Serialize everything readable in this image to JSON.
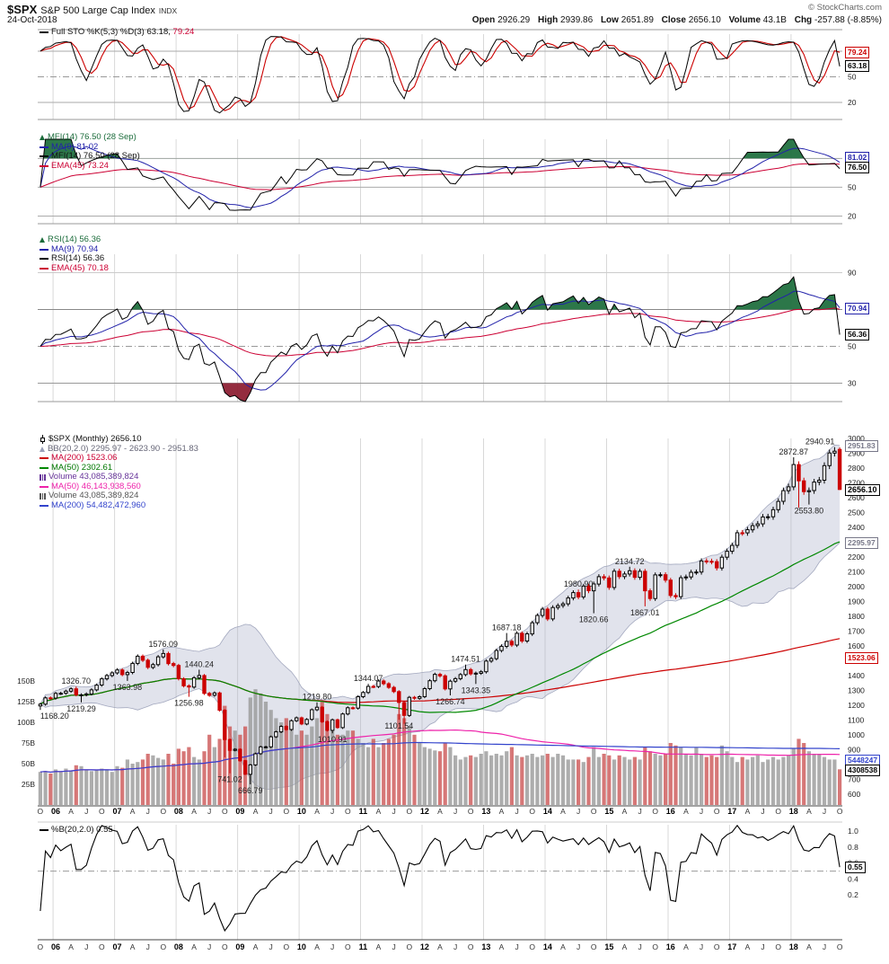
{
  "header": {
    "symbol": "$SPX",
    "name": "S&P 500 Large Cap Index",
    "exchange": "INDX",
    "date": "24-Oct-2018",
    "copyright": "© StockCharts.com",
    "quote": {
      "open_label": "Open",
      "open": "2926.29",
      "high_label": "High",
      "high": "2939.86",
      "low_label": "Low",
      "low": "2651.89",
      "close_label": "Close",
      "close": "2656.10",
      "volume_label": "Volume",
      "volume": "43.1B",
      "chg_label": "Chg",
      "chg": "-257.88 (-8.85%)"
    }
  },
  "legends": {
    "sto": {
      "title": "Full STO %K(5,3) %D(3)",
      "k_value": "63.18,",
      "d_value": "79.24"
    },
    "mfi": {
      "title": "MFI(14) 76.50 (28 Sep)",
      "ma9": "MA(9) 81.02",
      "mfi": "MFI(14) 76.50 (28 Sep)",
      "ema45": "EMA(45) 73.24"
    },
    "rsi": {
      "title": "RSI(14) 56.36",
      "ma9": "MA(9) 70.94",
      "rsi": "RSI(14) 56.36",
      "ema45": "EMA(45) 70.18"
    },
    "price": {
      "title": "$SPX (Monthly) 2656.10",
      "bb": "BB(20,2.0) 2295.97 - 2623.90 - 2951.83",
      "ma200": "MA(200) 1523.06",
      "ma50": "MA(50) 2302.61",
      "volume1": "Volume 43,085,389,824",
      "volma50": "MA(50) 46,143,938,560",
      "volume2": "Volume 43,085,389,824",
      "volma200": "MA(200) 54,482,472,960"
    },
    "pctb": {
      "title": "%B(20,2.0) 0.55"
    }
  },
  "colors": {
    "k_line": "#000000",
    "d_line": "#cc0000",
    "ma9": "#2222aa",
    "ema45": "#cc0033",
    "overbought_fill": "#1a6b3a",
    "oversold_fill": "#8b1a2f",
    "price_ma200": "#cc0000",
    "price_ma50": "#008800",
    "vol_ma50": "#ee22aa",
    "vol_ma200": "#3344cc",
    "bb_fill": "#aab0c8",
    "bb_edge": "#9aa0b8",
    "candle_up": "#000000",
    "candle_down": "#cc0000",
    "vol_up": "#999999",
    "vol_down": "#cc5555",
    "grid": "#d8d8d8"
  },
  "chart_data": {
    "type": "candlestick",
    "symbol": "$SPX",
    "timeframe": "Monthly",
    "start": "2005-10",
    "close": [
      1207.01,
      1249.48,
      1248.29,
      1280.08,
      1280.66,
      1294.87,
      1310.61,
      1270.09,
      1270.2,
      1276.66,
      1303.82,
      1335.85,
      1377.94,
      1400.63,
      1418.3,
      1438.24,
      1406.82,
      1420.86,
      1482.37,
      1530.62,
      1503.35,
      1455.27,
      1473.99,
      1526.75,
      1549.38,
      1481.14,
      1468.36,
      1378.55,
      1330.63,
      1322.7,
      1385.59,
      1400.38,
      1280.0,
      1267.38,
      1282.83,
      1166.36,
      968.75,
      896.24,
      903.25,
      825.88,
      735.09,
      797.87,
      872.81,
      919.14,
      919.32,
      987.48,
      1020.62,
      1057.08,
      1036.19,
      1095.63,
      1115.1,
      1073.87,
      1104.49,
      1169.43,
      1186.69,
      1089.41,
      1030.71,
      1101.6,
      1049.33,
      1141.2,
      1183.26,
      1180.55,
      1257.64,
      1286.12,
      1327.22,
      1325.83,
      1363.61,
      1345.2,
      1320.64,
      1292.28,
      1218.89,
      1131.42,
      1253.3,
      1246.96,
      1257.6,
      1312.41,
      1365.68,
      1408.47,
      1397.91,
      1310.33,
      1362.16,
      1379.32,
      1406.58,
      1440.67,
      1412.16,
      1416.18,
      1426.19,
      1498.11,
      1514.68,
      1569.19,
      1597.57,
      1630.74,
      1606.28,
      1685.73,
      1632.97,
      1681.55,
      1756.54,
      1805.81,
      1848.36,
      1782.59,
      1859.45,
      1872.34,
      1883.95,
      1923.57,
      1960.23,
      1930.67,
      2003.37,
      1972.29,
      2018.05,
      2067.56,
      2058.9,
      1994.99,
      2104.5,
      2067.89,
      2085.51,
      2107.39,
      2063.11,
      2103.84,
      1972.18,
      1920.03,
      2079.36,
      2080.41,
      2043.94,
      1940.24,
      1932.23,
      2059.74,
      2065.3,
      2096.96,
      2098.86,
      2173.6,
      2170.95,
      2168.27,
      2126.15,
      2198.81,
      2238.83,
      2278.87,
      2363.64,
      2362.72,
      2384.2,
      2411.8,
      2423.41,
      2470.3,
      2471.65,
      2519.36,
      2575.26,
      2647.58,
      2673.61,
      2823.81,
      2713.83,
      2640.87,
      2648.05,
      2705.27,
      2718.37,
      2816.29,
      2901.52,
      2913.98,
      2656.1
    ],
    "volume_b": [
      40,
      41,
      38,
      43,
      40,
      44,
      42,
      48,
      47,
      43,
      41,
      42,
      44,
      43,
      40,
      47,
      45,
      55,
      50,
      52,
      55,
      62,
      60,
      57,
      55,
      62,
      50,
      68,
      65,
      70,
      58,
      55,
      65,
      85,
      70,
      80,
      120,
      95,
      90,
      85,
      95,
      130,
      140,
      135,
      125,
      115,
      105,
      100,
      105,
      95,
      85,
      90,
      85,
      95,
      105,
      125,
      110,
      95,
      85,
      85,
      90,
      90,
      80,
      75,
      70,
      80,
      70,
      75,
      80,
      85,
      110,
      105,
      95,
      85,
      75,
      70,
      68,
      66,
      65,
      75,
      70,
      60,
      55,
      58,
      60,
      58,
      62,
      65,
      60,
      62,
      60,
      65,
      70,
      60,
      58,
      60,
      62,
      58,
      60,
      62,
      58,
      62,
      60,
      55,
      55,
      55,
      52,
      58,
      70,
      58,
      62,
      60,
      55,
      60,
      58,
      55,
      58,
      55,
      70,
      65,
      62,
      60,
      62,
      75,
      72,
      70,
      62,
      60,
      70,
      62,
      58,
      60,
      58,
      72,
      65,
      58,
      52,
      58,
      55,
      58,
      60,
      52,
      55,
      58,
      55,
      58,
      60,
      68,
      80,
      75,
      65,
      62,
      62,
      58,
      55,
      55,
      43.1
    ],
    "overrides": {
      "open": {
        "156": 2926.29
      },
      "high": {
        "7": 1326.7,
        "24": 1576.09,
        "31": 1440.24,
        "54": 1219.8,
        "64": 1344.07,
        "83": 1474.51,
        "91": 1687.18,
        "105": 1980.9,
        "115": 2134.72,
        "147": 2872.87,
        "155": 2940.91,
        "156": 2939.86
      },
      "low": {
        "0": 1168.2,
        "8": 1219.29,
        "17": 1363.98,
        "29": 1256.98,
        "36": 848.92,
        "37": 741.02,
        "41": 666.79,
        "57": 1010.91,
        "70": 1101.54,
        "71": 1074.77,
        "80": 1266.74,
        "85": 1343.35,
        "108": 1820.66,
        "118": 1867.01,
        "148": 2532.69,
        "150": 2553.8,
        "156": 2651.89
      }
    },
    "last_candle": {
      "open": 2926.29,
      "high": 2939.86,
      "low": 2651.89,
      "close": 2656.1
    },
    "annotations": [
      {
        "i": 0,
        "v": 1168.2,
        "label": "1168.20",
        "side": "below"
      },
      {
        "i": 7,
        "v": 1326.7,
        "label": "1326.70",
        "side": "above"
      },
      {
        "i": 8,
        "v": 1219.29,
        "label": "1219.29",
        "side": "below"
      },
      {
        "i": 17,
        "v": 1363.98,
        "label": "1363.98",
        "side": "below"
      },
      {
        "i": 24,
        "v": 1576.09,
        "label": "1576.09",
        "side": "above"
      },
      {
        "i": 29,
        "v": 1256.98,
        "label": "1256.98",
        "side": "below"
      },
      {
        "i": 31,
        "v": 1440.24,
        "label": "1440.24",
        "side": "above"
      },
      {
        "i": 37,
        "v": 741.02,
        "label": "741.02",
        "side": "below"
      },
      {
        "i": 41,
        "v": 666.79,
        "label": "666.79",
        "side": "below"
      },
      {
        "i": 54,
        "v": 1219.8,
        "label": "1219.80",
        "side": "above"
      },
      {
        "i": 57,
        "v": 1010.91,
        "label": "1010.91",
        "side": "below"
      },
      {
        "i": 64,
        "v": 1344.07,
        "label": "1344.07",
        "side": "above"
      },
      {
        "i": 70,
        "v": 1101.54,
        "label": "1101.54",
        "side": "below"
      },
      {
        "i": 80,
        "v": 1266.74,
        "label": "1266.74",
        "side": "below"
      },
      {
        "i": 83,
        "v": 1474.51,
        "label": "1474.51",
        "side": "above"
      },
      {
        "i": 85,
        "v": 1343.35,
        "label": "1343.35",
        "side": "below"
      },
      {
        "i": 91,
        "v": 1687.18,
        "label": "1687.18",
        "side": "above"
      },
      {
        "i": 105,
        "v": 1980.9,
        "label": "1980.90",
        "side": "above"
      },
      {
        "i": 108,
        "v": 1820.66,
        "label": "1820.66",
        "side": "below"
      },
      {
        "i": 115,
        "v": 2134.72,
        "label": "2134.72",
        "side": "above"
      },
      {
        "i": 118,
        "v": 1867.01,
        "label": "1867.01",
        "side": "below"
      },
      {
        "i": 147,
        "v": 2872.87,
        "label": "2872.87",
        "side": "above"
      },
      {
        "i": 150,
        "v": 2553.8,
        "label": "2553.80",
        "side": "below"
      },
      {
        "i": 155,
        "v": 2940.91,
        "label": "2940.91",
        "side": "above"
      }
    ],
    "axes": {
      "price_ticks": [
        600,
        700,
        800,
        900,
        1000,
        1100,
        1200,
        1300,
        1400,
        1500,
        1600,
        1700,
        1800,
        1900,
        2000,
        2100,
        2200,
        2300,
        2400,
        2500,
        2600,
        2700,
        2800,
        2900,
        3000
      ],
      "volume_ticks": [
        {
          "v": 25,
          "label": "25B"
        },
        {
          "v": 50,
          "label": "50B"
        },
        {
          "v": 75,
          "label": "75B"
        },
        {
          "v": 100,
          "label": "100B"
        },
        {
          "v": 125,
          "label": "125B"
        },
        {
          "v": 150,
          "label": "150B"
        }
      ],
      "sto_ticks": [
        80,
        50,
        20
      ],
      "mfi_ticks": [
        80,
        50,
        20
      ],
      "rsi_ticks": [
        90,
        70,
        50,
        30
      ],
      "pctb_ticks": [
        {
          "v": 1.0,
          "label": "1.0"
        },
        {
          "v": 0.8,
          "label": "0.8"
        },
        {
          "v": 0.6,
          "label": "0.6"
        },
        {
          "v": 0.4,
          "label": "0.4"
        },
        {
          "v": 0.2,
          "label": "0.2"
        }
      ],
      "month_labels": {
        "apr": "A",
        "jul": "J",
        "oct": "O"
      }
    },
    "flags": [
      {
        "panel": "sto",
        "value": 79.24,
        "label": "79.24",
        "color": "#cc0000"
      },
      {
        "panel": "sto",
        "value": 63.18,
        "label": "63.18",
        "color": "#000000"
      },
      {
        "panel": "mfi",
        "value": 81.02,
        "label": "81.02",
        "color": "#2222aa"
      },
      {
        "panel": "mfi",
        "value": 76.5,
        "label": "76.50",
        "color": "#000000"
      },
      {
        "panel": "rsi",
        "value": 70.94,
        "label": "70.94",
        "color": "#2222aa"
      },
      {
        "panel": "rsi",
        "value": 56.36,
        "label": "56.36",
        "color": "#000000"
      },
      {
        "panel": "price",
        "value": 2951.83,
        "label": "2951.83",
        "color": "#777788"
      },
      {
        "panel": "price",
        "value": 2656.1,
        "label": "2656.10",
        "color": "#000000",
        "bold": true
      },
      {
        "panel": "price",
        "value": 2295.97,
        "label": "2295.97",
        "color": "#777788"
      },
      {
        "panel": "price",
        "value": 1523.06,
        "label": "1523.06",
        "color": "#cc0000"
      },
      {
        "panel": "vol",
        "value": 54.48,
        "label": "5448247",
        "color": "#3344cc"
      },
      {
        "panel": "vol",
        "value": 43.09,
        "label": "4308538",
        "color": "#000000"
      },
      {
        "panel": "pctb",
        "value": 0.55,
        "label": "0.55",
        "color": "#000000"
      }
    ],
    "indicators": {
      "sto_k": 63.18,
      "sto_d": 79.24,
      "mfi": 76.5,
      "mfi_ma9": 81.02,
      "mfi_ema45": 73.24,
      "rsi": 56.36,
      "rsi_ma9": 70.94,
      "rsi_ema45": 70.18,
      "bb_lower": 2295.97,
      "bb_mid": 2623.9,
      "bb_upper": 2951.83,
      "ma200": 1523.06,
      "ma50": 2302.61,
      "volume": "43,085,389,824",
      "vol_ma50": "46,143,938,560",
      "vol_ma200": "54,482,472,960",
      "pctb": 0.55
    }
  }
}
